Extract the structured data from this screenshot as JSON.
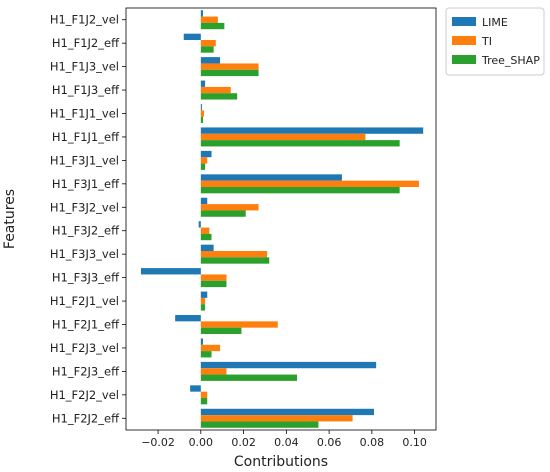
{
  "chart_data": {
    "type": "bar",
    "orientation": "horizontal",
    "xlabel": "Contributions",
    "ylabel": "Features",
    "xlim": [
      -0.035,
      0.11
    ],
    "xticks": [
      -0.02,
      0.0,
      0.02,
      0.04,
      0.06,
      0.08,
      0.1
    ],
    "xtick_labels": [
      "−0.02",
      "0.00",
      "0.02",
      "0.04",
      "0.06",
      "0.08",
      "0.10"
    ],
    "grid": false,
    "legend_position": "outside-top-right",
    "categories": [
      "H1_F1J2_vel",
      "H1_F1J2_eff",
      "H1_F1J3_vel",
      "H1_F1J3_eff",
      "H1_F1J1_vel",
      "H1_F1J1_eff",
      "H1_F3J1_vel",
      "H1_F3J1_eff",
      "H1_F3J2_vel",
      "H1_F3J2_eff",
      "H1_F3J3_vel",
      "H1_F3J3_eff",
      "H1_F2J1_vel",
      "H1_F2J1_eff",
      "H1_F2J3_vel",
      "H1_F2J3_eff",
      "H1_F2J2_vel",
      "H1_F2J2_eff"
    ],
    "series": [
      {
        "name": "LIME",
        "color": "#1f77b4",
        "values": [
          0.001,
          -0.008,
          0.009,
          0.002,
          0.0005,
          0.104,
          0.005,
          0.066,
          0.003,
          -0.001,
          0.006,
          -0.028,
          0.003,
          -0.012,
          0.001,
          0.082,
          -0.005,
          0.081
        ]
      },
      {
        "name": "TI",
        "color": "#ff7f0e",
        "values": [
          0.008,
          0.007,
          0.027,
          0.014,
          0.0015,
          0.077,
          0.003,
          0.102,
          0.027,
          0.004,
          0.031,
          0.012,
          0.002,
          0.036,
          0.009,
          0.012,
          0.003,
          0.071
        ]
      },
      {
        "name": "Tree_SHAP",
        "color": "#2ca02c",
        "values": [
          0.011,
          0.006,
          0.027,
          0.017,
          0.001,
          0.093,
          0.002,
          0.093,
          0.021,
          0.005,
          0.032,
          0.012,
          0.002,
          0.019,
          0.005,
          0.045,
          0.003,
          0.055
        ]
      }
    ]
  }
}
